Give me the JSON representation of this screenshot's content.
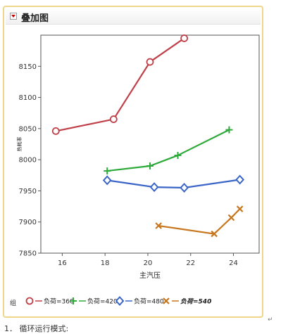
{
  "panel": {
    "title": "叠加图"
  },
  "chart_data": {
    "type": "line",
    "title": "",
    "xlabel": "主汽压",
    "ylabel": "热耗率",
    "xlim": [
      15,
      25.2
    ],
    "ylim": [
      7850,
      8200
    ],
    "xticks": [
      16,
      18,
      20,
      22,
      24
    ],
    "yticks": [
      7850,
      7900,
      7950,
      8000,
      8050,
      8100,
      8150
    ],
    "legend_title": "组",
    "legend_position": "bottom",
    "series": [
      {
        "name": "负荷=360",
        "color": "#c0404a",
        "marker": "circle",
        "x": [
          15.7,
          18.4,
          20.1,
          21.7
        ],
        "y": [
          8046,
          8065,
          8157,
          8195
        ]
      },
      {
        "name": "负荷=420",
        "color": "#2eaa3a",
        "marker": "plus",
        "x": [
          18.1,
          20.1,
          21.4,
          23.8
        ],
        "y": [
          7982,
          7990,
          8007,
          8048
        ]
      },
      {
        "name": "负荷=480",
        "color": "#3b66c8",
        "marker": "diamond",
        "x": [
          18.1,
          20.3,
          21.7,
          24.3
        ],
        "y": [
          7967,
          7956,
          7955,
          7968
        ]
      },
      {
        "name": "负荷=540",
        "color": "#c8771e",
        "marker": "x",
        "x": [
          20.5,
          23.1,
          23.9,
          24.3
        ],
        "y": [
          7894,
          7881,
          7907,
          7921
        ]
      }
    ]
  },
  "footnote": "1．       循环运行模式:"
}
